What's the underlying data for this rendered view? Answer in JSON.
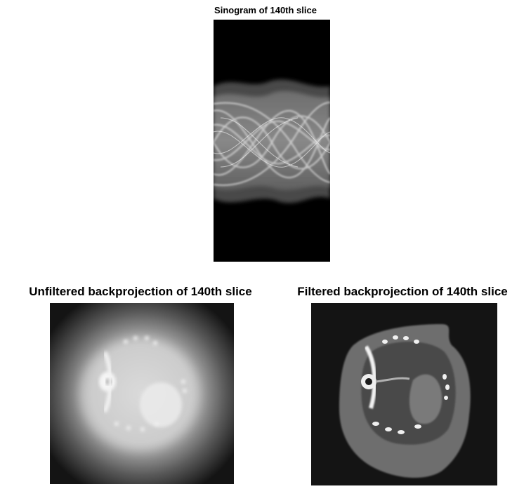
{
  "titles": {
    "sinogram": "Sinogram of 140th slice",
    "unfiltered": "Unfiltered backprojection of 140th slice",
    "filtered": "Filtered backprojection of 140th slice"
  },
  "colors": {
    "background": "#ffffff",
    "image_background": "#000000",
    "title_text": "#000000"
  }
}
